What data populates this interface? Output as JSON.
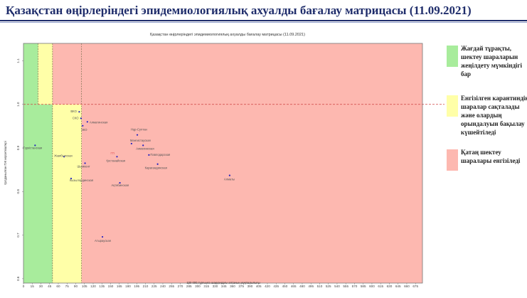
{
  "slide_title": "Қазақстан өңірлеріндегі эпидемиологиялық ахуалды бағалау матрицасы  (11.09.2021)",
  "legend": [
    {
      "text": "Жағдай тұрақты, шектеу шараларын жеңілдету мүмкіндігі бар",
      "color": "#a8ec9c"
    },
    {
      "text": "Енгізілген карантиндік шаралар сақталады және олардың орындалуын бақылау күшейтіледі",
      "color": "#ffffa8"
    },
    {
      "text": "Қатаң шектеу шаралары енгізіледі",
      "color": "#fdb8b0"
    }
  ],
  "colors": {
    "green": "#a8ec9c",
    "yellow": "#ffffa8",
    "red": "#fdb8b0",
    "point": "#2020c0",
    "threshold": "#d04040",
    "label": "#555555",
    "label_highlight": "#e05050"
  },
  "chart_data": {
    "type": "scatter",
    "title": "Қазақстан өңірлеріндегі эпидемиологиялық ахуалды бағалау матрицасы (11.09.2021)",
    "xlabel": "100 000 тұрғынға шаққандағы аптаның жұқпалылығы",
    "ylabel": "Қолданылған ПЖ көрсеткіштері",
    "xlim": [
      0,
      687
    ],
    "ylim": [
      0.59,
      1.14
    ],
    "xticks": [
      0,
      15,
      30,
      45,
      60,
      75,
      90,
      105,
      120,
      135,
      150,
      165,
      180,
      195,
      210,
      225,
      240,
      255,
      270,
      285,
      300,
      315,
      330,
      345,
      360,
      375,
      390,
      405,
      420,
      435,
      450,
      465,
      480,
      495,
      510,
      525,
      540,
      555,
      570,
      585,
      600,
      615,
      630,
      645,
      660,
      675
    ],
    "yticks": [
      0.6,
      0.7,
      0.8,
      0.9,
      1.0,
      1.1
    ],
    "ytick_labels": [
      "0.6",
      "0.7",
      "0.8",
      "0.9",
      "1.0",
      "1.1"
    ],
    "zones": [
      {
        "name": "green",
        "x_from": 0,
        "x_to": 50,
        "y_from": 0.59,
        "y_to": 1.14,
        "color": "#a8ec9c"
      },
      {
        "name": "green-upper",
        "x_from": 50,
        "x_to": 100,
        "y_from": 1.0,
        "y_to": 1.14,
        "color": "#a8ec9c"
      },
      {
        "name": "yellow",
        "x_from": 50,
        "x_to": 100,
        "y_from": 0.59,
        "y_to": 1.0,
        "color": "#ffffa8"
      },
      {
        "name": "yellow-upper",
        "x_from": 25,
        "x_to": 50,
        "y_from": 1.0,
        "y_to": 1.14,
        "color": "#ffffa8"
      },
      {
        "name": "red",
        "x_from": 100,
        "x_to": 687,
        "y_from": 0.59,
        "y_to": 1.14,
        "color": "#fdb8b0"
      },
      {
        "name": "red-upper",
        "x_from": 50,
        "x_to": 100,
        "y_from": 1.0,
        "y_to": 1.14,
        "color": "#fdb8b0"
      }
    ],
    "reference_lines": {
      "vertical": [
        25,
        50,
        100
      ],
      "horizontal": [
        1.0
      ]
    },
    "points": [
      {
        "label": "Түркістанская",
        "x": 20,
        "y": 0.906
      },
      {
        "label": "Жамбылская",
        "x": 70,
        "y": 0.88
      },
      {
        "label": "Кызылординская",
        "x": 82,
        "y": 0.83
      },
      {
        "label": "ВКО",
        "x": 96,
        "y": 0.983
      },
      {
        "label": "СКО",
        "x": 99,
        "y": 0.968
      },
      {
        "label": "ЗКО",
        "x": 102,
        "y": 0.951
      },
      {
        "label": "Алматинская",
        "x": 110,
        "y": 0.96
      },
      {
        "label": "Шымкент",
        "x": 106,
        "y": 0.865
      },
      {
        "label": "Атырауская",
        "x": 136,
        "y": 0.696
      },
      {
        "label": "Қостанайская",
        "x": 161,
        "y": 0.88
      },
      {
        "label": "Ақтөбинская",
        "x": 166,
        "y": 0.82
      },
      {
        "label": "Нұр-Султан",
        "x": 196,
        "y": 0.93
      },
      {
        "label": "Мангистауская",
        "x": 186,
        "y": 0.91
      },
      {
        "label": "Акмолинская",
        "x": 206,
        "y": 0.906
      },
      {
        "label": "Павлодарская",
        "x": 216,
        "y": 0.884
      },
      {
        "label": "Карагандинская",
        "x": 231,
        "y": 0.863
      },
      {
        "label": "Алматы",
        "x": 355,
        "y": 0.837
      }
    ],
    "extra_labels": [
      {
        "text": "ГП",
        "x": 150,
        "y": 0.885
      }
    ]
  }
}
